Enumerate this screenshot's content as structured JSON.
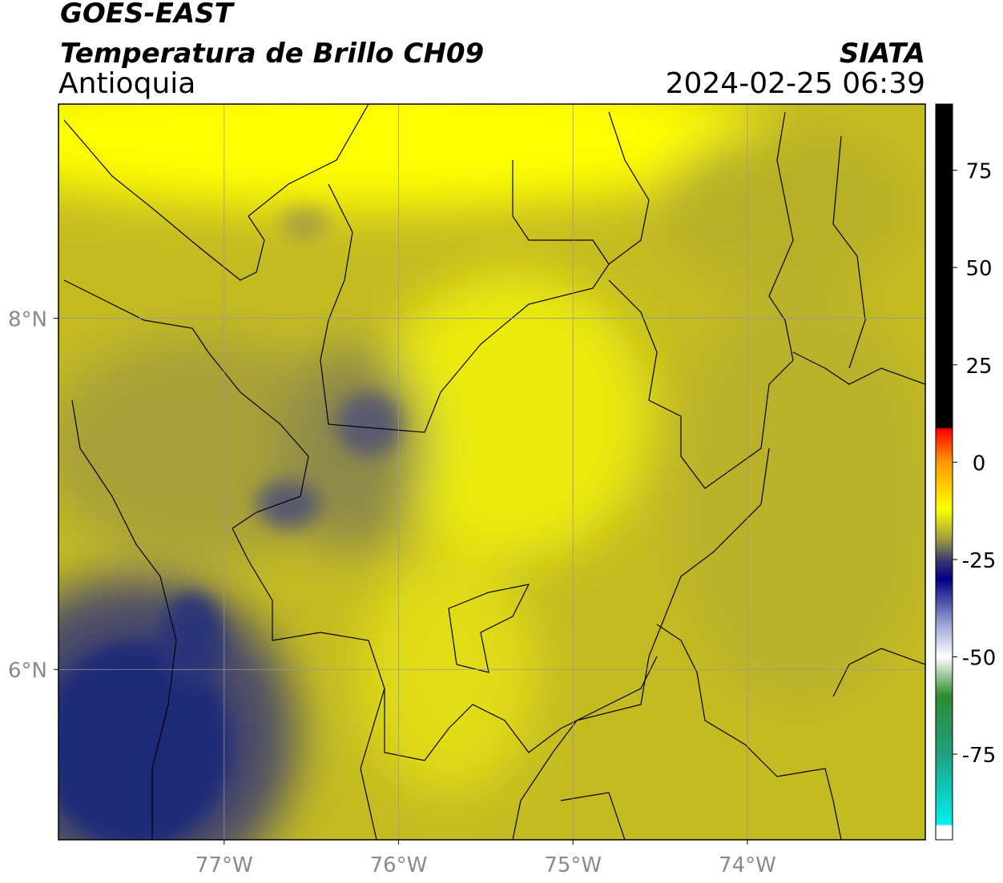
{
  "map": {
    "header": {
      "title": "GOES-EAST",
      "subtitle": "Temperatura de Brillo CH09",
      "region": "Antioquia",
      "source": "SIATA",
      "datetime": "2024-02-25 06:39"
    },
    "xlim": [
      -77.95,
      -72.98
    ],
    "ylim": [
      5.03,
      9.22
    ],
    "xticks": [
      {
        "value": -77,
        "label": "77°W"
      },
      {
        "value": -76,
        "label": "76°W"
      },
      {
        "value": -75,
        "label": "75°W"
      },
      {
        "value": -74,
        "label": "74°W"
      }
    ],
    "yticks": [
      {
        "value": 6,
        "label": "6°N"
      },
      {
        "value": 8,
        "label": "8°N"
      }
    ],
    "grid": true,
    "colorbar": {
      "lim": [
        -97,
        92
      ],
      "ticks": [
        75,
        50,
        25,
        0,
        -25,
        -50,
        -75
      ],
      "stops": [
        {
          "value": 92,
          "color": "#000000"
        },
        {
          "value": 9,
          "color": "#000000"
        },
        {
          "value": 8.5,
          "color": "#ff0000"
        },
        {
          "value": 0,
          "color": "#ff9900"
        },
        {
          "value": -12,
          "color": "#ffff00"
        },
        {
          "value": -20,
          "color": "#9a9a40"
        },
        {
          "value": -25,
          "color": "#3c3c70"
        },
        {
          "value": -30,
          "color": "#000080"
        },
        {
          "value": -42,
          "color": "#a0a8d8"
        },
        {
          "value": -50,
          "color": "#ffffff"
        },
        {
          "value": -60,
          "color": "#2e8b2e"
        },
        {
          "value": -75,
          "color": "#20a080"
        },
        {
          "value": -93,
          "color": "#00f0f0"
        },
        {
          "value": -93.5,
          "color": "#ffffff"
        },
        {
          "value": -97,
          "color": "#ffffff"
        }
      ]
    }
  }
}
